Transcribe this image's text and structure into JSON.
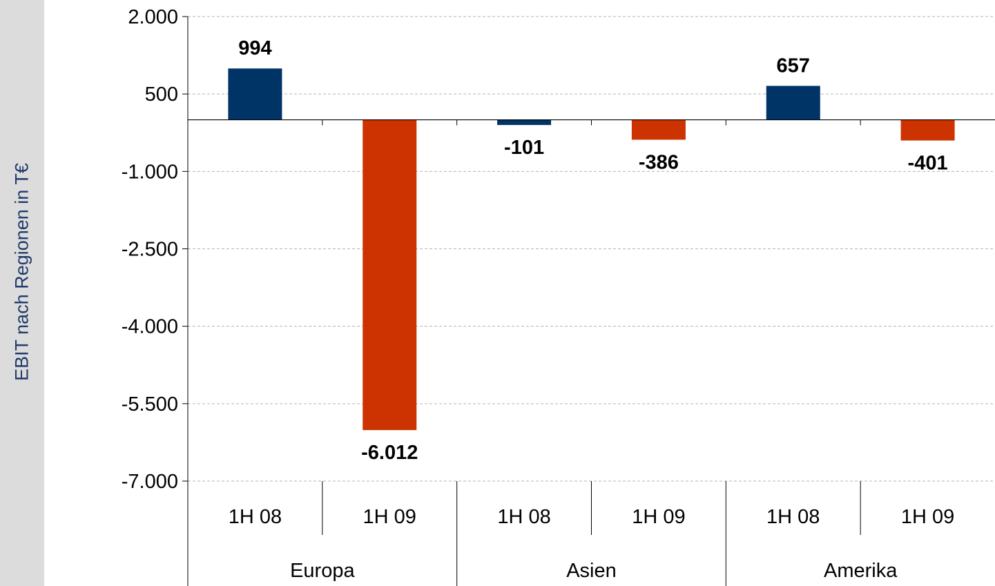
{
  "chart_data": {
    "type": "bar",
    "title": "",
    "ylabel": "EBIT nach Regionen in T€",
    "xlabel": "",
    "ylim": [
      -7000,
      2000
    ],
    "yticks": [
      2000,
      500,
      -1000,
      -2500,
      -4000,
      -5500,
      -7000
    ],
    "ytick_labels": [
      "2.000",
      "500",
      "-1.000",
      "-2.500",
      "-4.000",
      "-5.500",
      "-7.000"
    ],
    "grid": true,
    "groups": [
      "Europa",
      "Asien",
      "Amerika"
    ],
    "categories": [
      "1H 08",
      "1H 09",
      "1H 08",
      "1H 09",
      "1H 08",
      "1H 09"
    ],
    "values": [
      994,
      -6012,
      -101,
      -386,
      657,
      -401
    ],
    "value_labels": [
      "994",
      "-6.012",
      "-101",
      "-386",
      "657",
      "-401"
    ],
    "colors": [
      "#003366",
      "#cc3300",
      "#003366",
      "#cc3300",
      "#003366",
      "#cc3300"
    ]
  }
}
